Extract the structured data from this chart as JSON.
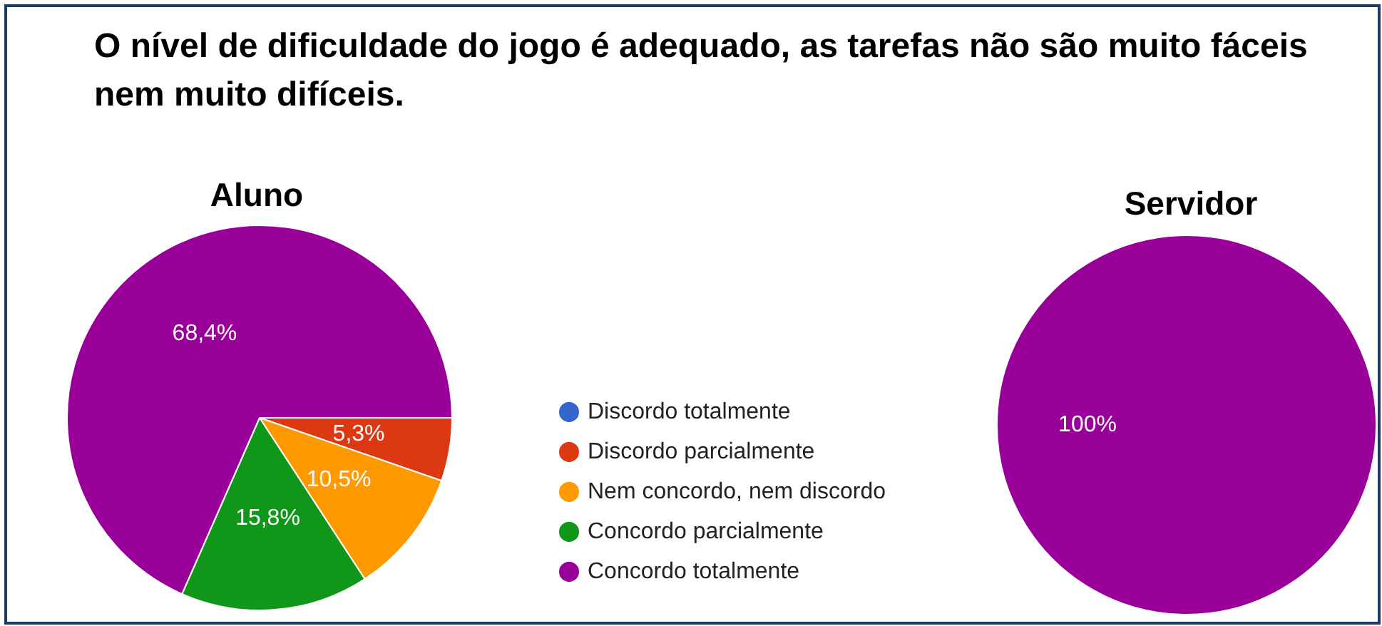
{
  "chart_data": {
    "type": "pie",
    "title": "O nível de dificuldade do jogo é adequado,  as tarefas não são muito fáceis nem muito difíceis.",
    "categories": [
      "Discordo totalmente",
      "Discordo parcialmente",
      "Nem concordo, nem discordo",
      "Concordo parcialmente",
      "Concordo totalmente"
    ],
    "colors": [
      "#3366cc",
      "#dc3912",
      "#ff9900",
      "#109618",
      "#990099"
    ],
    "legend": "right",
    "series": [
      {
        "name": "Aluno",
        "values": [
          0,
          5.3,
          10.5,
          15.8,
          68.4
        ],
        "value_labels": [
          null,
          "5,3%",
          "10,5%",
          "15,8%",
          "68,4%"
        ]
      },
      {
        "name": "Servidor",
        "values": [
          0,
          0,
          0,
          0,
          100
        ],
        "value_labels": [
          null,
          null,
          null,
          null,
          "100%"
        ]
      }
    ]
  }
}
